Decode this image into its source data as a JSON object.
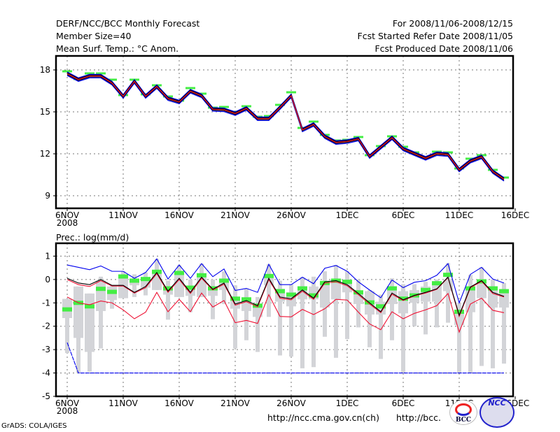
{
  "header": {
    "left": [
      "DERF/NCC/BCC Monthly Forecast",
      "Member Size=40",
      "Mean Surf. Temp.: °C Anom."
    ],
    "right": [
      "For 2008/11/06-2008/12/15",
      "Fcst Started Refer Date 2008/11/05",
      "Fcst Produced Date 2008/11/06"
    ]
  },
  "footer": {
    "credit": "GrADS: COLA/IGES",
    "url1": "http://ncc.cma.gov.cn(ch)",
    "url2": "http://bcc.",
    "logo1": "BCC",
    "logo2": "NCC"
  },
  "colors": {
    "obs": "#44ee44",
    "mean": "#000000",
    "red": "#ee1133",
    "blue": "#0000ee",
    "box": "#d3d4d8"
  },
  "chart_data": [
    {
      "type": "line",
      "title": "Mean Surf. Temp.: °C Anom.",
      "x_start": "2008-11-06",
      "days": 40,
      "xticks": [
        "6NOV",
        "11NOV",
        "16NOV",
        "21NOV",
        "26NOV",
        "1DEC",
        "6DEC",
        "11DEC",
        "16DEC"
      ],
      "xtick_sub": "2008",
      "yticks": [
        9,
        12,
        15,
        18
      ],
      "ylim": [
        8.1,
        19
      ],
      "grid": true,
      "series": [
        {
          "name": "ensemble",
          "values": [
            17.75,
            17.33,
            17.58,
            17.58,
            17.08,
            16.13,
            17.2,
            16.13,
            16.83,
            15.97,
            15.73,
            16.5,
            16.17,
            15.2,
            15.17,
            14.9,
            15.27,
            14.53,
            14.53,
            15.33,
            16.17,
            13.73,
            14.12,
            13.25,
            12.83,
            12.9,
            13.08,
            11.83,
            12.5,
            13.17,
            12.37,
            12.03,
            11.7,
            12.03,
            11.97,
            10.87,
            11.5,
            11.8,
            10.75,
            10.2
          ]
        },
        {
          "name": "observed",
          "values": [
            17.9,
            17.35,
            17.75,
            17.75,
            17.3,
            16.2,
            17.3,
            16.25,
            16.9,
            16.1,
            15.8,
            16.7,
            16.3,
            15.3,
            15.35,
            15.0,
            15.4,
            14.65,
            14.7,
            15.5,
            16.4,
            13.85,
            14.3,
            13.35,
            12.95,
            13.0,
            13.2,
            11.9,
            12.55,
            13.25,
            12.5,
            12.1,
            11.75,
            12.15,
            12.1,
            10.95,
            11.65,
            11.9,
            10.85,
            10.3
          ]
        }
      ]
    },
    {
      "type": "line",
      "title": "Prec.: log(mm/d)",
      "x_start": "2008-11-06",
      "days": 40,
      "xticks": [
        "6NOV",
        "11NOV",
        "16NOV",
        "21NOV",
        "26NOV",
        "1DEC",
        "6DEC",
        "11DEC",
        "16DEC"
      ],
      "xtick_sub": "2008",
      "yticks": [
        -5,
        -4,
        -3,
        -2,
        -1,
        0,
        1
      ],
      "ylim": [
        -5,
        1.55
      ],
      "grid": true,
      "series": [
        {
          "name": "mean",
          "values": [
            0.05,
            -0.15,
            -0.22,
            0.0,
            -0.25,
            -0.25,
            -0.55,
            -0.3,
            0.3,
            -0.5,
            0.05,
            -0.55,
            0.1,
            -0.42,
            -0.15,
            -1.05,
            -0.9,
            -1.12,
            0.05,
            -0.75,
            -0.82,
            -0.45,
            -0.8,
            -0.1,
            -0.05,
            -0.22,
            -0.6,
            -1.0,
            -1.38,
            -0.58,
            -0.87,
            -0.68,
            -0.55,
            -0.4,
            0.1,
            -1.53,
            -0.32,
            -0.05,
            -0.55,
            -0.72
          ]
        },
        {
          "name": "red_upper",
          "values": [
            0.0,
            -0.22,
            -0.3,
            -0.05,
            -0.28,
            -0.28,
            -0.58,
            -0.35,
            0.25,
            -0.55,
            0.0,
            -0.6,
            0.05,
            -0.45,
            -0.2,
            -1.1,
            -0.95,
            -1.17,
            0.0,
            -0.8,
            -0.87,
            -0.5,
            -0.85,
            -0.15,
            -0.1,
            -0.27,
            -0.65,
            -1.05,
            -1.42,
            -0.63,
            -0.9,
            -0.7,
            -0.58,
            -0.42,
            0.08,
            -1.58,
            -0.35,
            -0.08,
            -0.6,
            -0.75
          ]
        },
        {
          "name": "red_lower",
          "values": [
            -0.75,
            -1.0,
            -1.08,
            -0.92,
            -1.0,
            -1.3,
            -1.68,
            -1.4,
            -0.55,
            -1.38,
            -0.85,
            -1.38,
            -0.58,
            -1.18,
            -0.9,
            -1.85,
            -1.75,
            -1.88,
            -0.65,
            -1.58,
            -1.6,
            -1.28,
            -1.5,
            -1.25,
            -0.85,
            -0.88,
            -1.4,
            -1.9,
            -2.15,
            -1.38,
            -1.68,
            -1.45,
            -1.3,
            -1.12,
            -0.6,
            -2.25,
            -1.05,
            -0.8,
            -1.32,
            -1.42
          ]
        },
        {
          "name": "blue_upper",
          "values": [
            0.62,
            0.52,
            0.42,
            0.58,
            0.35,
            0.35,
            0.05,
            0.3,
            0.88,
            0.02,
            0.62,
            0.05,
            0.68,
            0.12,
            0.45,
            -0.47,
            -0.38,
            -0.55,
            0.65,
            -0.22,
            -0.22,
            0.1,
            -0.18,
            0.48,
            0.6,
            0.35,
            -0.1,
            -0.45,
            -0.78,
            -0.02,
            -0.35,
            -0.12,
            -0.05,
            0.18,
            0.68,
            -1.0,
            0.22,
            0.52,
            0.02,
            -0.15
          ]
        },
        {
          "name": "blue_lower",
          "values": [
            -2.7,
            -4,
            -4,
            -4,
            -4,
            -4,
            -4,
            -4,
            -4,
            -4,
            -4,
            -4,
            -4,
            -4,
            -4,
            -4,
            -4,
            -4,
            -4,
            -4,
            -4,
            -4,
            -4,
            -4,
            -4,
            -4,
            -4,
            -4,
            -4,
            -4,
            -4,
            -4,
            -4,
            -4,
            -4,
            -4,
            -4,
            -4,
            -4,
            -4
          ]
        },
        {
          "name": "observed",
          "values": [
            -1.28,
            -1.0,
            -1.15,
            -0.4,
            -0.53,
            0.13,
            -0.05,
            0.02,
            0.33,
            -0.38,
            0.28,
            -0.35,
            0.18,
            -0.38,
            -0.05,
            -0.82,
            -0.85,
            -1.12,
            0.15,
            -0.5,
            -0.65,
            -0.38,
            -0.68,
            -0.15,
            -0.05,
            -0.1,
            -0.55,
            -0.98,
            -1.15,
            -0.38,
            -0.82,
            -0.68,
            -0.45,
            -0.16,
            0.2,
            -1.38,
            -0.38,
            -0.08,
            -0.38,
            -0.5
          ]
        }
      ],
      "boxes": [
        [
          -0.83,
          -0.83,
          -1.65,
          -3.15
        ],
        [
          -0.3,
          -0.3,
          -2.5,
          -4.0
        ],
        [
          -0.6,
          -0.6,
          -3.1,
          -3.95
        ],
        [
          0.12,
          -0.05,
          -1.35,
          -2.95
        ],
        [
          -0.25,
          -0.3,
          -0.88,
          -1.25
        ],
        [
          0.35,
          0.1,
          -0.8,
          -0.8
        ],
        [
          0.22,
          0.0,
          -0.25,
          -0.75
        ],
        [
          0.3,
          0.02,
          -0.35,
          -0.68
        ],
        [
          0.88,
          0.3,
          -0.45,
          -0.45
        ],
        [
          -0.05,
          -0.3,
          -0.65,
          -1.72
        ],
        [
          0.62,
          0.3,
          -0.75,
          -0.75
        ],
        [
          0.0,
          -0.3,
          -0.7,
          -1.4
        ],
        [
          0.68,
          0.2,
          -0.75,
          -0.75
        ],
        [
          0.0,
          -0.3,
          -0.7,
          -1.7
        ],
        [
          0.35,
          -0.05,
          -0.45,
          -1.05
        ],
        [
          -0.25,
          -0.75,
          -1.25,
          -2.95
        ],
        [
          -0.4,
          -0.85,
          -1.35,
          -2.6
        ],
        [
          -0.75,
          -1.1,
          -1.6,
          -3.1
        ],
        [
          0.65,
          0.1,
          -0.25,
          -1.6
        ],
        [
          -0.05,
          -0.4,
          -0.95,
          -3.25
        ],
        [
          -0.2,
          -0.55,
          -1.15,
          -3.3
        ],
        [
          0.1,
          -0.35,
          -0.85,
          -3.8
        ],
        [
          0.12,
          -0.3,
          -0.85,
          -3.75
        ],
        [
          0.35,
          -0.2,
          -1.2,
          -2.45
        ],
        [
          0.62,
          0.0,
          -0.85,
          -3.35
        ],
        [
          0.35,
          0.0,
          -0.55,
          -2.55
        ],
        [
          0.0,
          -0.55,
          -1.05,
          -2.05
        ],
        [
          -0.45,
          -0.5,
          -1.5,
          -2.9
        ],
        [
          -0.65,
          -0.95,
          -1.5,
          -3.4
        ],
        [
          0.05,
          -0.3,
          -1.05,
          -2.6
        ],
        [
          -0.2,
          -0.5,
          -1.45,
          -4.0
        ],
        [
          -0.2,
          -0.45,
          -1.0,
          -2.0
        ],
        [
          -0.1,
          -0.3,
          -0.95,
          -2.35
        ],
        [
          0.0,
          -0.25,
          -0.95,
          -2.05
        ],
        [
          0.7,
          0.0,
          -0.5,
          -1.85
        ],
        [
          -1.0,
          -1.3,
          -1.95,
          -4.0
        ],
        [
          0.2,
          -0.3,
          -1.4,
          -4.0
        ],
        [
          0.52,
          -0.1,
          -0.8,
          -3.7
        ],
        [
          0.0,
          -0.35,
          -1.2,
          -3.8
        ],
        [
          -0.15,
          -0.55,
          -1.2,
          -3.6
        ]
      ]
    }
  ]
}
